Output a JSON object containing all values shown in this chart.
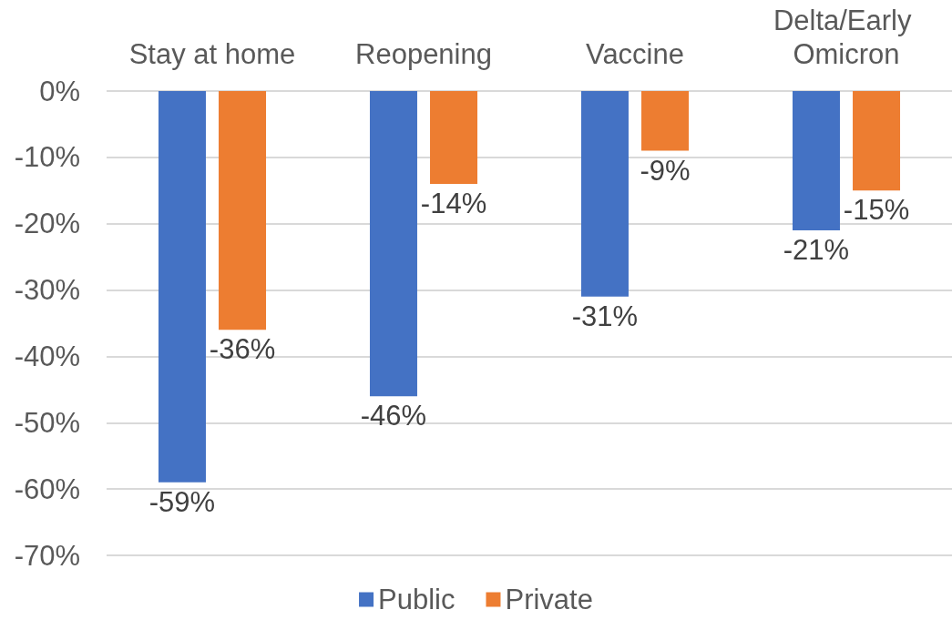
{
  "chart_data": {
    "type": "bar",
    "categories": [
      "Stay at home",
      "Reopening",
      "Vaccine",
      "Delta/Early Omicron"
    ],
    "series": [
      {
        "name": "Public",
        "color": "#4472c4",
        "values": [
          -59,
          -46,
          -31,
          -21
        ],
        "value_labels": [
          "-59%",
          "-46%",
          "-31%",
          "-21%"
        ]
      },
      {
        "name": "Private",
        "color": "#ed7d31",
        "values": [
          -36,
          -14,
          -9,
          -15
        ],
        "value_labels": [
          "-36%",
          "-14%",
          "-9%",
          "-15%"
        ]
      }
    ],
    "ylim": [
      -70,
      0
    ],
    "yticks": [
      {
        "value": 0,
        "label": "0%"
      },
      {
        "value": -10,
        "label": "-10%"
      },
      {
        "value": -20,
        "label": "-20%"
      },
      {
        "value": -30,
        "label": "-30%"
      },
      {
        "value": -40,
        "label": "-40%"
      },
      {
        "value": -50,
        "label": "-50%"
      },
      {
        "value": -60,
        "label": "-60%"
      },
      {
        "value": -70,
        "label": "-70%"
      }
    ],
    "grid": "y",
    "legend": "bottom"
  }
}
